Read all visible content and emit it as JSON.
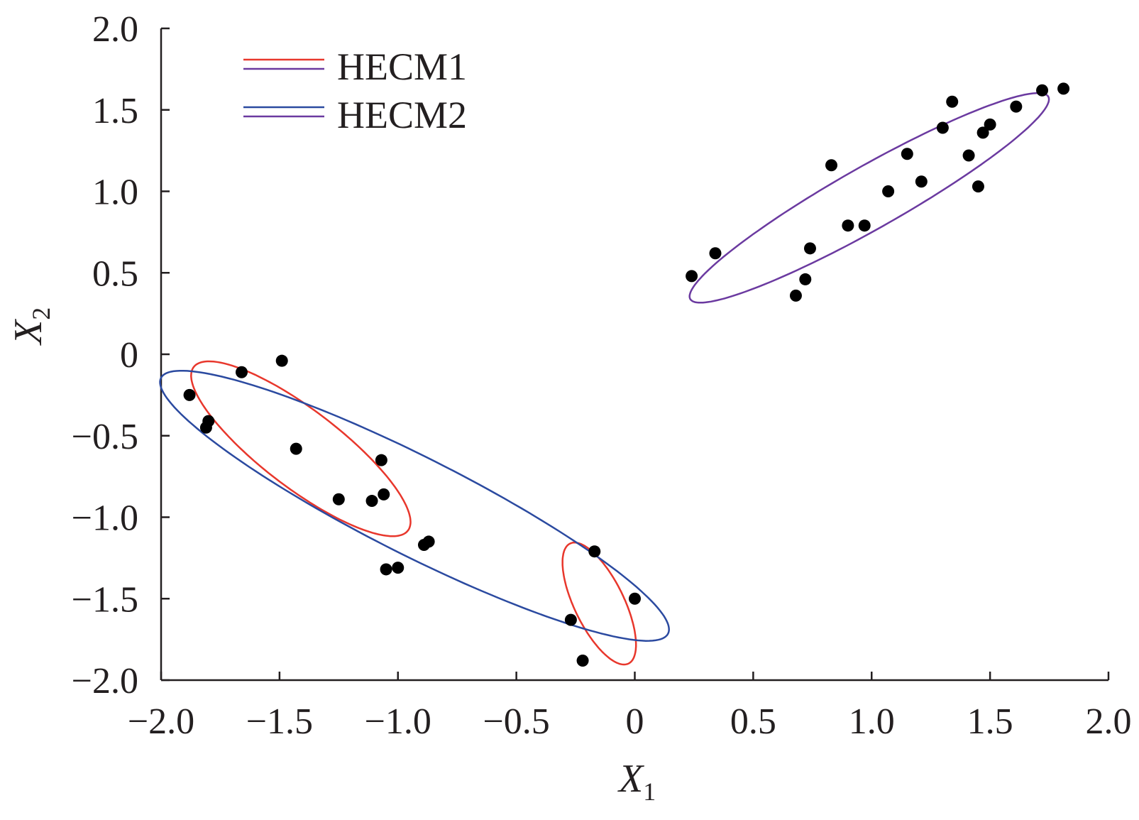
{
  "chart_data": {
    "type": "scatter",
    "xlabel": "X",
    "xlabel_sub": "1",
    "ylabel": "X",
    "ylabel_sub": "2",
    "xlim": [
      -2.0,
      2.0
    ],
    "ylim": [
      -2.0,
      2.0
    ],
    "x_ticks": [
      -2.0,
      -1.5,
      -1.0,
      -0.5,
      0,
      0.5,
      1.0,
      1.5,
      2.0
    ],
    "y_ticks": [
      2.0,
      1.5,
      1.0,
      0.5,
      0,
      -0.5,
      -1.0,
      -1.5,
      -2.0
    ],
    "x_tick_labels": [
      "−2.0",
      "−1.5",
      "−1.0",
      "−0.5",
      "0",
      "0.5",
      "1.0",
      "1.5",
      "2.0"
    ],
    "y_tick_labels": [
      "2.0",
      "1.5",
      "1.0",
      "0.5",
      "0",
      "−0.5",
      "−1.0",
      "−1.5",
      "−2.0"
    ],
    "grid": false,
    "legend_position": "top-left",
    "legend": [
      {
        "label": "HECM1",
        "colors": [
          "#e8372c",
          "#6b3aa0"
        ]
      },
      {
        "label": "HECM2",
        "colors": [
          "#2b4aa0",
          "#6b3aa0"
        ]
      }
    ],
    "points": [
      [
        -1.88,
        -0.25
      ],
      [
        -1.8,
        -0.41
      ],
      [
        -1.81,
        -0.45
      ],
      [
        -1.66,
        -0.11
      ],
      [
        -1.49,
        -0.04
      ],
      [
        -1.43,
        -0.58
      ],
      [
        -1.25,
        -0.89
      ],
      [
        -1.11,
        -0.9
      ],
      [
        -1.07,
        -0.65
      ],
      [
        -1.06,
        -0.86
      ],
      [
        -0.89,
        -1.17
      ],
      [
        -0.87,
        -1.15
      ],
      [
        -1.0,
        -1.31
      ],
      [
        -1.05,
        -1.32
      ],
      [
        -0.17,
        -1.21
      ],
      [
        -0.27,
        -1.63
      ],
      [
        -0.22,
        -1.88
      ],
      [
        0.0,
        -1.5
      ],
      [
        0.24,
        0.48
      ],
      [
        0.34,
        0.62
      ],
      [
        0.68,
        0.36
      ],
      [
        0.72,
        0.46
      ],
      [
        0.74,
        0.65
      ],
      [
        0.83,
        1.16
      ],
      [
        0.9,
        0.79
      ],
      [
        0.97,
        0.79
      ],
      [
        1.07,
        1.0
      ],
      [
        1.15,
        1.23
      ],
      [
        1.21,
        1.06
      ],
      [
        1.3,
        1.39
      ],
      [
        1.34,
        1.55
      ],
      [
        1.41,
        1.22
      ],
      [
        1.45,
        1.03
      ],
      [
        1.47,
        1.36
      ],
      [
        1.5,
        1.41
      ],
      [
        1.61,
        1.52
      ],
      [
        1.72,
        1.62
      ],
      [
        1.81,
        1.63
      ]
    ],
    "ellipses": [
      {
        "group": "HECM1",
        "color": "#e8372c",
        "center": [
          -1.41,
          -0.58
        ],
        "rx": 0.68,
        "ry": 0.2,
        "angle_deg": -50
      },
      {
        "group": "HECM1",
        "color": "#e8372c",
        "center": [
          -0.15,
          -1.53
        ],
        "rx": 0.39,
        "ry": 0.11,
        "angle_deg": -73
      },
      {
        "group": "HECM2",
        "color": "#2b4aa0",
        "center": [
          -0.93,
          -0.93
        ],
        "rx": 1.33,
        "ry": 0.27,
        "angle_deg": -37
      },
      {
        "group": "HECM2",
        "color": "#6b3aa0",
        "center": [
          0.99,
          0.96
        ],
        "rx": 0.98,
        "ry": 0.17,
        "angle_deg": 40
      }
    ]
  }
}
